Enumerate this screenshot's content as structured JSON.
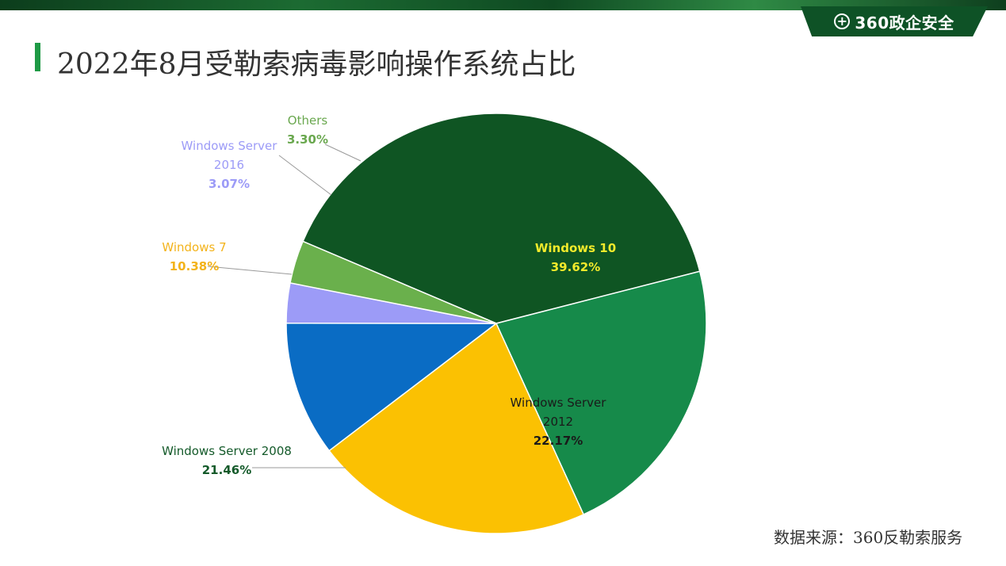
{
  "header": {
    "logo_text": "360政企安全"
  },
  "title": "2022年8月受勒索病毒影响操作系统占比",
  "source_note": "数据来源：360反勒索服务",
  "chart_data": {
    "type": "pie",
    "title": "2022年8月受勒索病毒影响操作系统占比",
    "unit": "%",
    "slices": [
      {
        "name": "Windows 10",
        "value": 39.62,
        "display": "39.62%",
        "color": "#0f5523",
        "label_color": "#f2ea2b"
      },
      {
        "name": "Windows Server 2012",
        "name_lines": [
          "Windows Server",
          "2012"
        ],
        "value": 22.17,
        "display": "22.17%",
        "color": "#168a4a",
        "label_color": "#1a1a1a"
      },
      {
        "name": "Windows Server 2008",
        "value": 21.46,
        "display": "21.46%",
        "color": "#fbc102",
        "label_color": "#145a2a"
      },
      {
        "name": "Windows 7",
        "value": 10.38,
        "display": "10.38%",
        "color": "#0a6cc4",
        "label_color": "#f3b31b"
      },
      {
        "name": "Windows Server 2016",
        "name_lines": [
          "Windows Server",
          "2016"
        ],
        "value": 3.07,
        "display": "3.07%",
        "color": "#9c9bf7",
        "label_color": "#9c9bf7"
      },
      {
        "name": "Others",
        "value": 3.3,
        "display": "3.30%",
        "color": "#6ab04c",
        "label_color": "#6aa84f"
      }
    ]
  }
}
